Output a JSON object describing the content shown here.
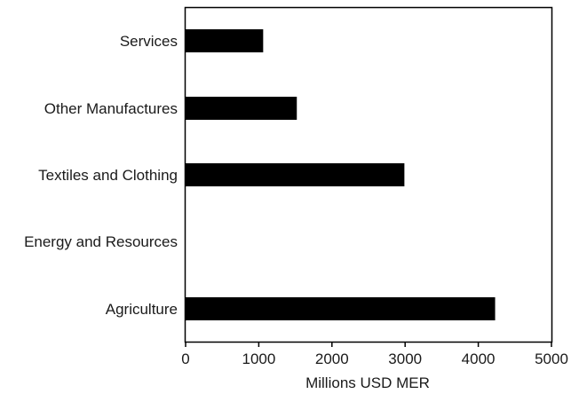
{
  "chart_data": {
    "type": "bar",
    "orientation": "horizontal",
    "title": "",
    "xlabel": "Millions USD MER",
    "ylabel": "",
    "xlim": [
      0,
      5000
    ],
    "xticks": [
      "0",
      "1000",
      "2000",
      "3000",
      "4000",
      "5000"
    ],
    "categories": [
      "Services",
      "Other Manufactures",
      "Textiles and Clothing",
      "Energy and Resources",
      "Agriculture"
    ],
    "values": [
      1060,
      1520,
      2990,
      0,
      4230
    ],
    "grid": false,
    "legend": "none",
    "colors": {
      "bar": "#000000",
      "axis": "#000000",
      "text": "#1a1a1a"
    }
  }
}
